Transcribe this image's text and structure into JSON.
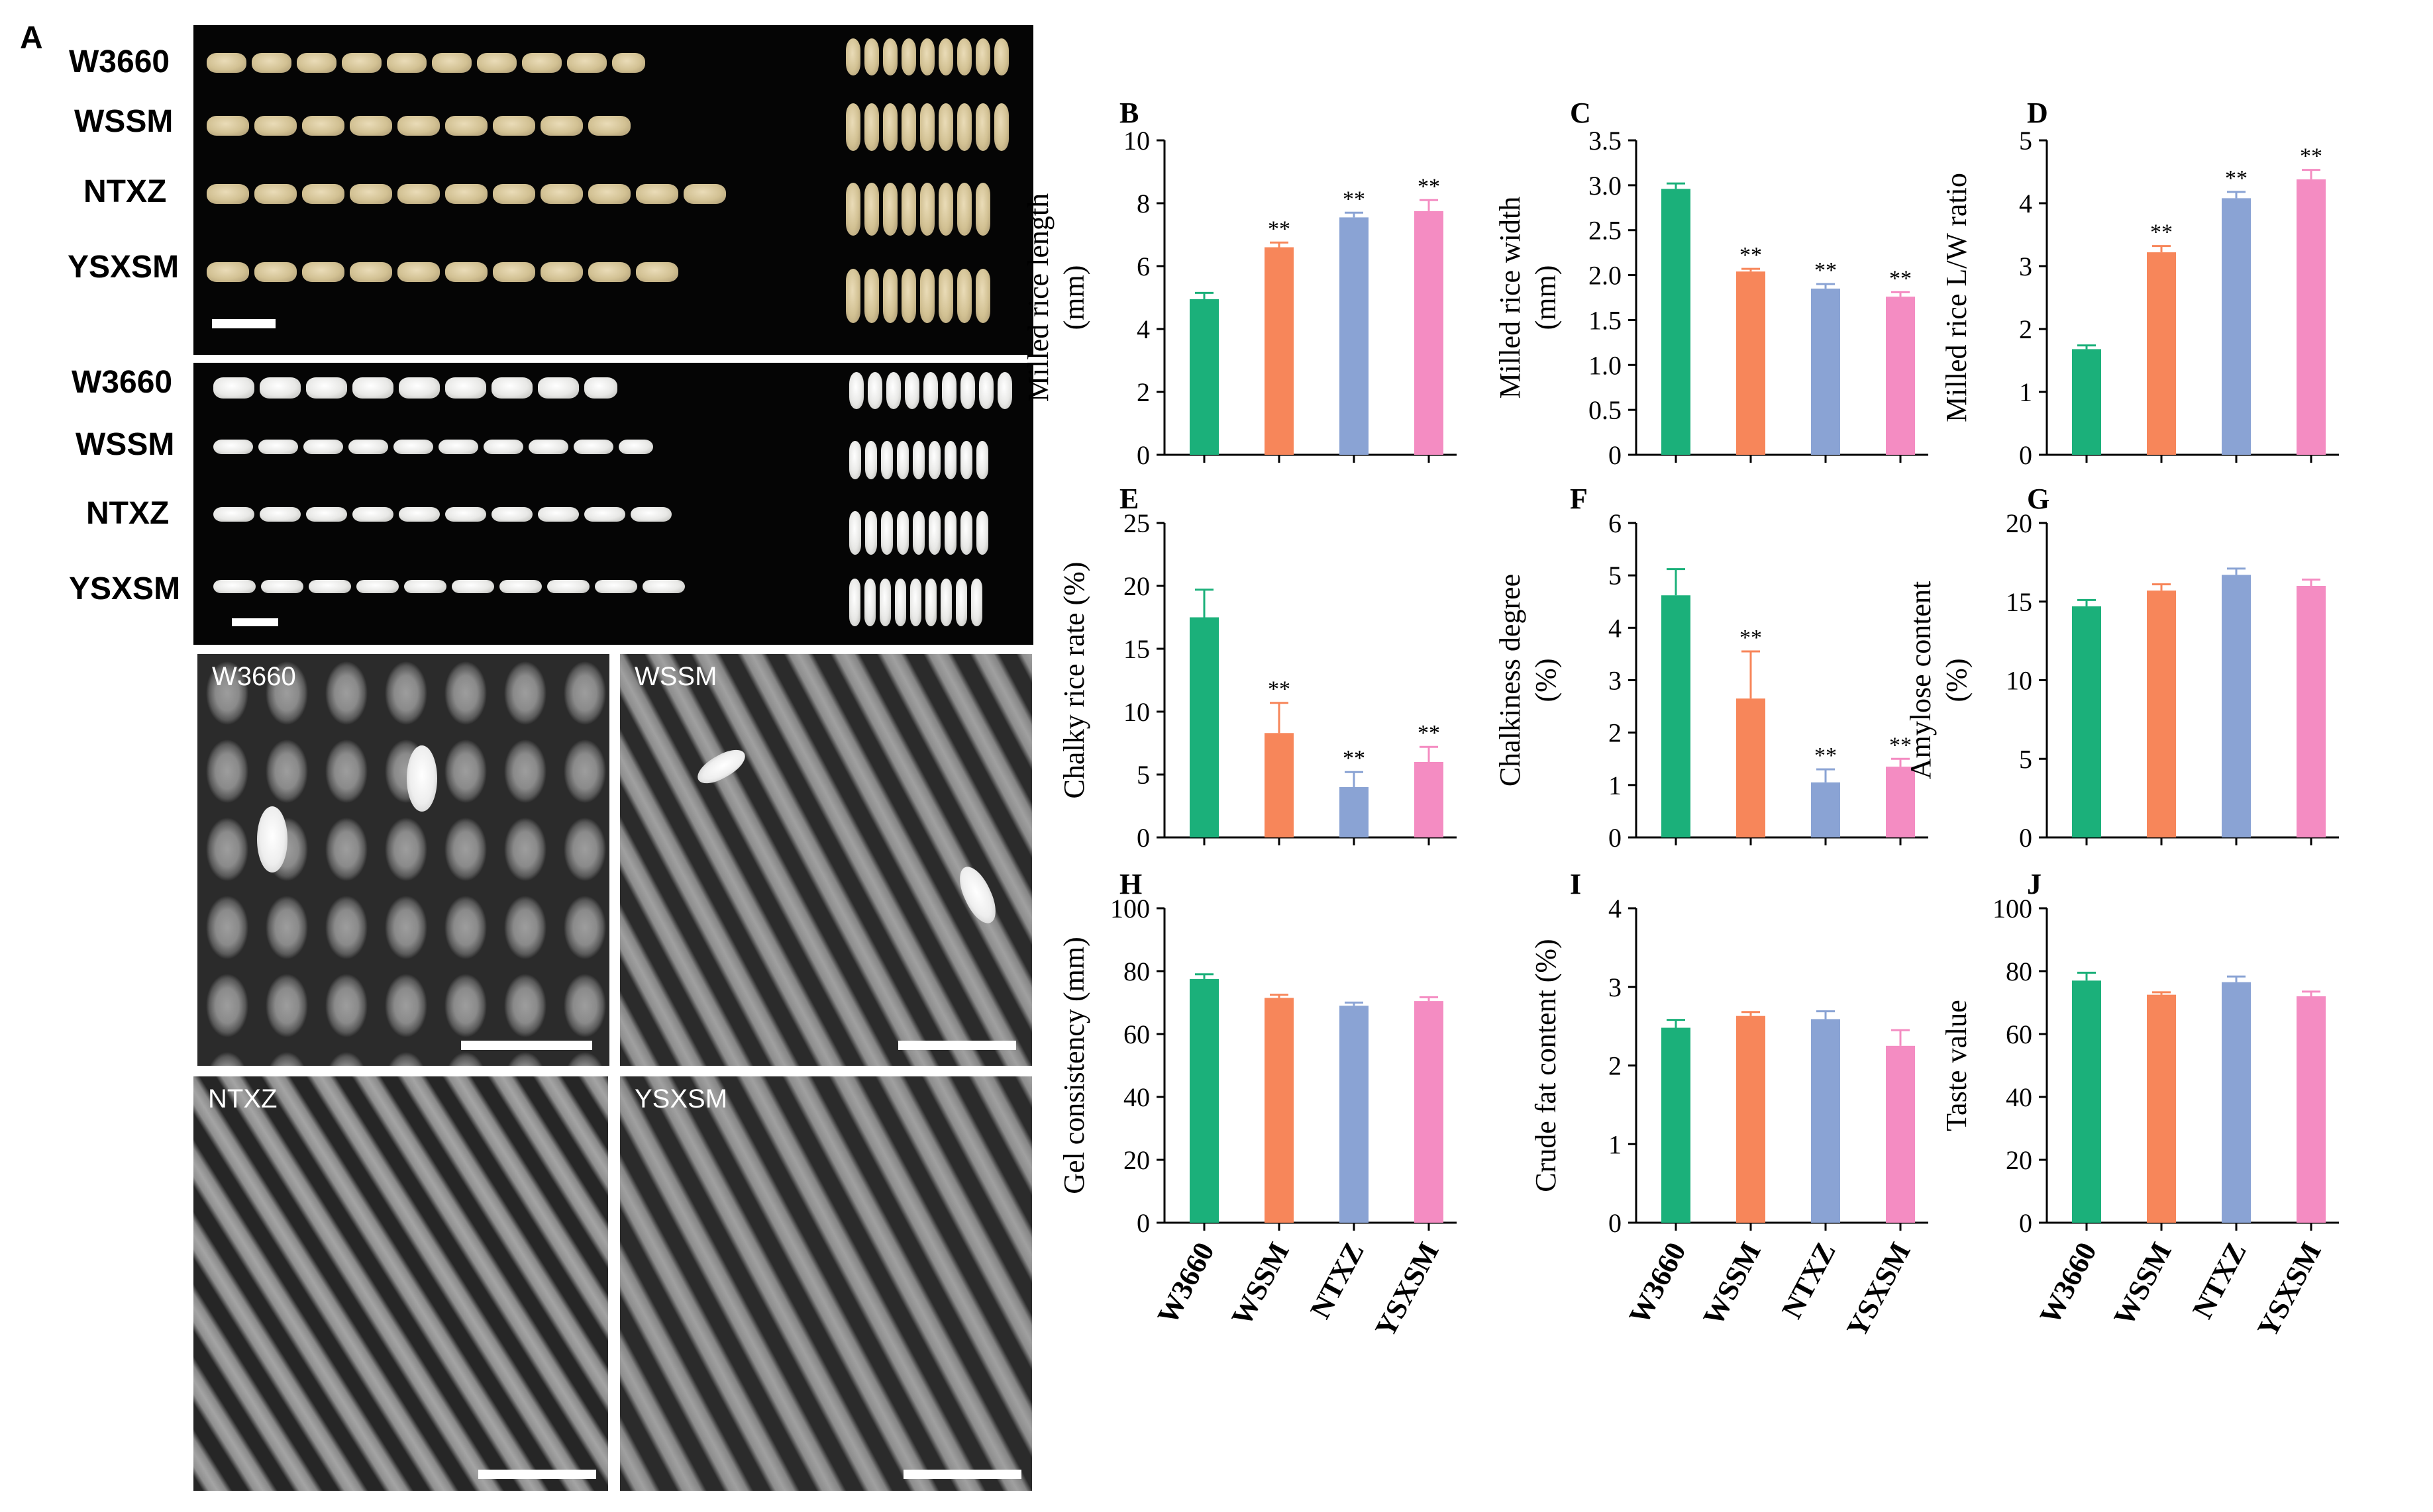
{
  "panel_a": {
    "label": "A",
    "brown_rows": [
      "W3660",
      "WSSM",
      "NTXZ",
      "YSXSM"
    ],
    "milled_rows": [
      "W3660",
      "WSSM",
      "NTXZ",
      "YSXSM"
    ],
    "micro_labels": [
      "W3660",
      "WSSM",
      "NTXZ",
      "YSXSM"
    ]
  },
  "colors": {
    "W3660": "#1bb07a",
    "WSSM": "#f7865a",
    "NTXZ": "#8aa3d4",
    "YSXSM": "#f48cc2"
  },
  "chart_data": [
    {
      "panel": "B",
      "type": "bar",
      "title": "",
      "xlabel": "",
      "ylabel": "Milled rice length (mm)",
      "ylabel_lines": [
        "Milled rice length",
        "(mm)"
      ],
      "categories": [
        "W3660",
        "WSSM",
        "NTXZ",
        "YSXSM"
      ],
      "values": [
        4.95,
        6.6,
        7.55,
        7.75
      ],
      "errors": [
        0.2,
        0.15,
        0.15,
        0.35
      ],
      "significance": [
        "",
        "**",
        "**",
        "**"
      ],
      "ylim": [
        0,
        10
      ],
      "yticks": [
        "0",
        "2",
        "4",
        "6",
        "8",
        "10"
      ],
      "show_xticklabels": false
    },
    {
      "panel": "C",
      "type": "bar",
      "title": "",
      "xlabel": "",
      "ylabel": "Milled rice width (mm)",
      "ylabel_lines": [
        "Milled rice width",
        "(mm)"
      ],
      "categories": [
        "W3660",
        "WSSM",
        "NTXZ",
        "YSXSM"
      ],
      "values": [
        2.96,
        2.04,
        1.85,
        1.76
      ],
      "errors": [
        0.06,
        0.03,
        0.05,
        0.05
      ],
      "significance": [
        "",
        "**",
        "**",
        "**"
      ],
      "ylim": [
        0,
        3.5
      ],
      "yticks": [
        "0",
        "0.5",
        "1.0",
        "1.5",
        "2.0",
        "2.5",
        "3.0",
        "3.5"
      ],
      "show_xticklabels": false
    },
    {
      "panel": "D",
      "type": "bar",
      "title": "",
      "xlabel": "",
      "ylabel": "Milled rice L/W ratio",
      "ylabel_lines": [
        "Milled rice L/W ratio"
      ],
      "categories": [
        "W3660",
        "WSSM",
        "NTXZ",
        "YSXSM"
      ],
      "values": [
        1.68,
        3.22,
        4.08,
        4.38
      ],
      "errors": [
        0.06,
        0.1,
        0.1,
        0.15
      ],
      "significance": [
        "",
        "**",
        "**",
        "**"
      ],
      "ylim": [
        0,
        5
      ],
      "yticks": [
        "0",
        "1",
        "2",
        "3",
        "4",
        "5"
      ],
      "show_xticklabels": false
    },
    {
      "panel": "E",
      "type": "bar",
      "title": "",
      "xlabel": "",
      "ylabel": "Chalky rice rate (%)",
      "ylabel_lines": [
        "Chalky rice rate (%)"
      ],
      "categories": [
        "W3660",
        "WSSM",
        "NTXZ",
        "YSXSM"
      ],
      "values": [
        17.5,
        8.3,
        4.0,
        6.0
      ],
      "errors": [
        2.2,
        2.4,
        1.2,
        1.2
      ],
      "significance": [
        "",
        "**",
        "**",
        "**"
      ],
      "ylim": [
        0,
        25
      ],
      "yticks": [
        "0",
        "5",
        "10",
        "15",
        "20",
        "25"
      ],
      "show_xticklabels": false
    },
    {
      "panel": "F",
      "type": "bar",
      "title": "",
      "xlabel": "",
      "ylabel": "Chalkiness degree (%)",
      "ylabel_lines": [
        "Chalkiness degree",
        "(%)"
      ],
      "categories": [
        "W3660",
        "WSSM",
        "NTXZ",
        "YSXSM"
      ],
      "values": [
        4.62,
        2.65,
        1.05,
        1.35
      ],
      "errors": [
        0.5,
        0.9,
        0.25,
        0.15
      ],
      "significance": [
        "",
        "**",
        "**",
        "**"
      ],
      "ylim": [
        0,
        6
      ],
      "yticks": [
        "0",
        "1",
        "2",
        "3",
        "4",
        "5",
        "6"
      ],
      "show_xticklabels": false
    },
    {
      "panel": "G",
      "type": "bar",
      "title": "",
      "xlabel": "",
      "ylabel": "Amylose content (%)",
      "ylabel_lines": [
        "Amylose content",
        "(%)"
      ],
      "categories": [
        "W3660",
        "WSSM",
        "NTXZ",
        "YSXSM"
      ],
      "values": [
        14.7,
        15.7,
        16.7,
        16.0
      ],
      "errors": [
        0.4,
        0.4,
        0.4,
        0.4
      ],
      "significance": [
        "",
        "",
        "",
        ""
      ],
      "ylim": [
        0,
        20
      ],
      "yticks": [
        "0",
        "5",
        "10",
        "15",
        "20"
      ],
      "show_xticklabels": false
    },
    {
      "panel": "H",
      "type": "bar",
      "title": "",
      "xlabel": "",
      "ylabel": "Gel consistency (mm)",
      "ylabel_lines": [
        "Gel consistency  (mm)"
      ],
      "categories": [
        "W3660",
        "WSSM",
        "NTXZ",
        "YSXSM"
      ],
      "values": [
        77.5,
        71.5,
        69.0,
        70.5
      ],
      "errors": [
        1.5,
        1.0,
        1.0,
        1.2
      ],
      "significance": [
        "",
        "",
        "",
        ""
      ],
      "ylim": [
        0,
        100
      ],
      "yticks": [
        "0",
        "20",
        "40",
        "60",
        "80",
        "100"
      ],
      "show_xticklabels": true
    },
    {
      "panel": "I",
      "type": "bar",
      "title": "",
      "xlabel": "",
      "ylabel": "Crude fat content (%)",
      "ylabel_lines": [
        "Crude fat content (%)"
      ],
      "categories": [
        "W3660",
        "WSSM",
        "NTXZ",
        "YSXSM"
      ],
      "values": [
        2.48,
        2.63,
        2.59,
        2.25
      ],
      "errors": [
        0.1,
        0.05,
        0.1,
        0.2
      ],
      "significance": [
        "",
        "",
        "",
        ""
      ],
      "ylim": [
        0,
        4
      ],
      "yticks": [
        "0",
        "1",
        "2",
        "3",
        "4"
      ],
      "show_xticklabels": true
    },
    {
      "panel": "J",
      "type": "bar",
      "title": "",
      "xlabel": "",
      "ylabel": "Taste value",
      "ylabel_lines": [
        "Taste value"
      ],
      "categories": [
        "W3660",
        "WSSM",
        "NTXZ",
        "YSXSM"
      ],
      "values": [
        77.0,
        72.5,
        76.5,
        72.0
      ],
      "errors": [
        2.5,
        0.8,
        1.8,
        1.5
      ],
      "significance": [
        "",
        "",
        "",
        ""
      ],
      "ylim": [
        0,
        100
      ],
      "yticks": [
        "0",
        "20",
        "40",
        "60",
        "80",
        "100"
      ],
      "show_xticklabels": true
    }
  ]
}
